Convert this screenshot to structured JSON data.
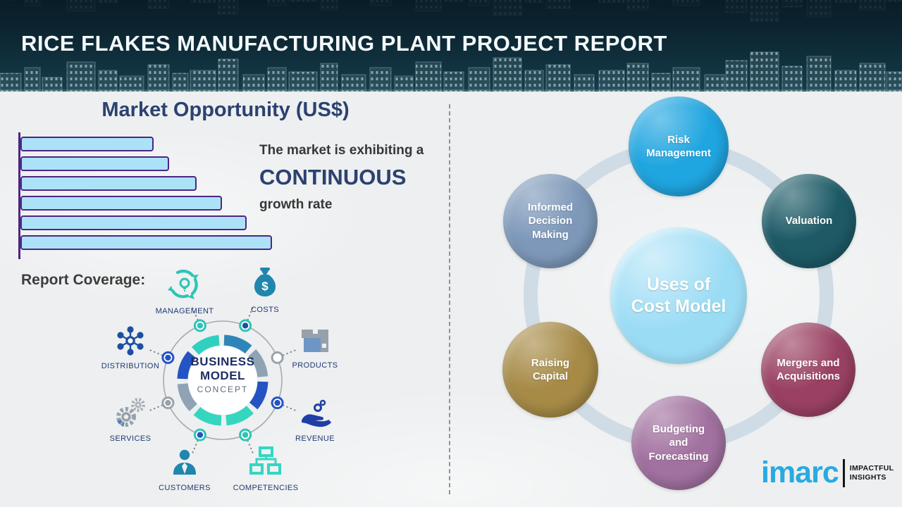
{
  "header": {
    "title": "RICE FLAKES MANUFACTURING PLANT PROJECT REPORT"
  },
  "left": {
    "section_title": "Market Opportunity (US$)",
    "growth_text": {
      "line1": "The market is exhibiting a",
      "emphasis": "CONTINUOUS",
      "line2": "growth rate"
    },
    "report_coverage_label": "Report Coverage:",
    "business_model_center": {
      "line1": "BUSINESS",
      "line2": "MODEL",
      "line3": "CONCEPT"
    },
    "coverage_items": [
      {
        "label": "MANAGEMENT",
        "icon": "management-cycle-icon"
      },
      {
        "label": "COSTS",
        "icon": "money-bag-icon"
      },
      {
        "label": "DISTRIBUTION",
        "icon": "distribution-network-icon"
      },
      {
        "label": "PRODUCTS",
        "icon": "products-box-icon"
      },
      {
        "label": "SERVICES",
        "icon": "services-gears-icon"
      },
      {
        "label": "REVENUE",
        "icon": "revenue-hand-coins-icon"
      },
      {
        "label": "CUSTOMERS",
        "icon": "customer-person-icon"
      },
      {
        "label": "COMPETENCIES",
        "icon": "org-chart-icon"
      }
    ]
  },
  "chart_data": {
    "type": "bar",
    "orientation": "horizontal",
    "title": "Market Opportunity (US$)",
    "categories": [
      "",
      "",
      "",
      "",
      "",
      ""
    ],
    "values_pct": [
      53,
      59,
      70,
      80,
      90,
      100
    ],
    "bar_fill": "#abe2f8",
    "bar_border": "#4f2583",
    "axis_color": "#4f2583",
    "grid": false
  },
  "right": {
    "center_circle": {
      "label": "Uses of Cost Model",
      "color": "#9bdcf5"
    },
    "satellites": [
      {
        "label": "Risk Management",
        "color": "#1fa5e0"
      },
      {
        "label": "Valuation",
        "color": "#1d5a66"
      },
      {
        "label": "Informed Decision Making",
        "color": "#7d98b9"
      },
      {
        "label": "Mergers and Acquisitions",
        "color": "#9a4163"
      },
      {
        "label": "Budgeting and Forecasting",
        "color": "#a1719f"
      },
      {
        "label": "Raising Capital",
        "color": "#a68a46"
      }
    ]
  },
  "brand": {
    "logo_text": "imarc",
    "tagline_line1": "IMPACTFUL",
    "tagline_line2": "INSIGHTS"
  }
}
